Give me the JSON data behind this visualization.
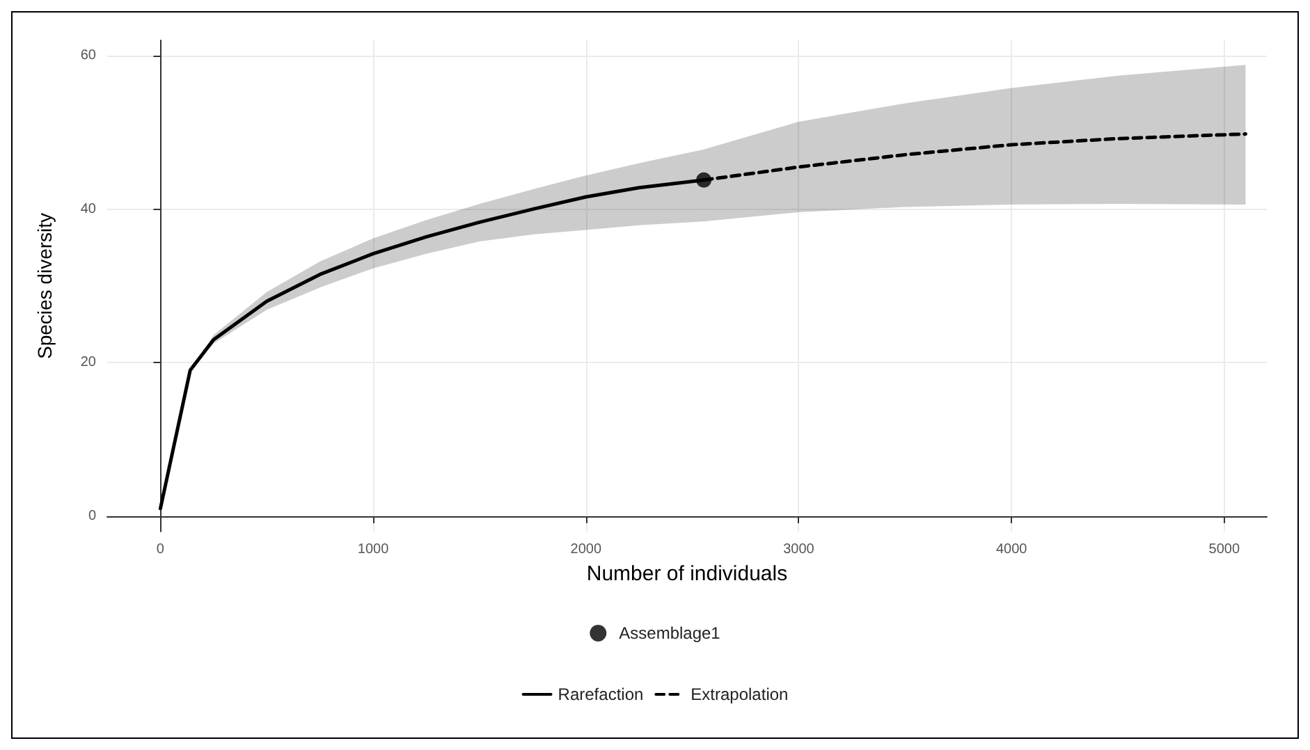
{
  "chart_data": {
    "type": "line",
    "xlabel": "Number of individuals",
    "ylabel": "Species diversity",
    "xlim": [
      -250,
      5200
    ],
    "xticks": [
      0,
      1000,
      2000,
      3000,
      4000,
      5000
    ],
    "ylim": [
      -2,
      62
    ],
    "yticks": [
      0,
      20,
      40,
      60
    ],
    "grid": true,
    "legend": "bottom",
    "marker": "none",
    "series": [
      {
        "name": "Rarefaction",
        "color": "#000000",
        "line_style": "solid",
        "x": [
          0,
          140,
          250,
          500,
          750,
          1000,
          1250,
          1500,
          1750,
          2000,
          2250,
          2554
        ],
        "values": [
          1,
          19,
          23,
          28,
          31.5,
          34.2,
          36.4,
          38.3,
          40,
          41.6,
          42.8,
          43.8
        ],
        "lower": [
          1,
          19,
          22.5,
          26.9,
          29.8,
          32.3,
          34.2,
          35.8,
          36.7,
          37.3,
          37.9,
          38.4
        ],
        "upper": [
          1,
          19,
          23.6,
          29.2,
          33.2,
          36.2,
          38.6,
          40.7,
          42.6,
          44.4,
          46,
          47.8
        ]
      },
      {
        "name": "Extrapolation",
        "color": "#000000",
        "line_style": "dashed",
        "x": [
          2554,
          3000,
          3500,
          4000,
          4500,
          5100
        ],
        "values": [
          43.8,
          45.5,
          47.1,
          48.4,
          49.2,
          49.8
        ],
        "lower": [
          38.4,
          39.6,
          40.3,
          40.6,
          40.7,
          40.6
        ],
        "upper": [
          47.8,
          51.4,
          53.8,
          55.8,
          57.4,
          58.8
        ]
      },
      {
        "name": "Assemblage1",
        "type": "scatter",
        "marker": "circle",
        "color": "#000000",
        "x": [
          2554
        ],
        "values": [
          43.8
        ]
      }
    ]
  }
}
